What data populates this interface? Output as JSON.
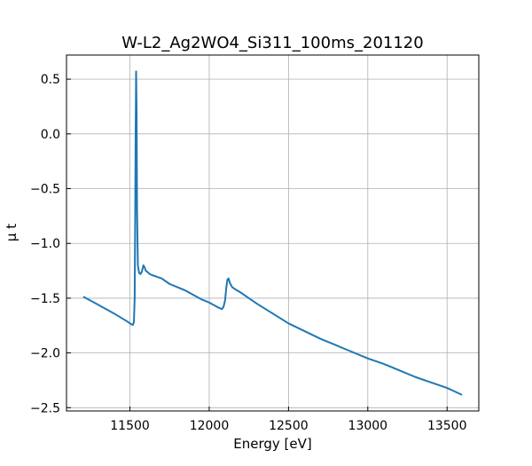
{
  "chart_data": {
    "type": "line",
    "title": "W-L2_Ag2WO4_Si311_100ms_201120",
    "xlabel": "Energy [eV]",
    "ylabel": "μ t",
    "xlim": [
      11100,
      13700
    ],
    "ylim": [
      -2.53,
      0.72
    ],
    "xticks": [
      11500,
      12000,
      12500,
      13000,
      13500
    ],
    "yticks": [
      0.5,
      0.0,
      -0.5,
      -1.0,
      -1.5,
      -2.0,
      -2.5
    ],
    "xtick_labels": [
      "11500",
      "12000",
      "12500",
      "13000",
      "13500"
    ],
    "ytick_labels": [
      "0.5",
      "0.0",
      "−0.5",
      "−1.0",
      "−1.5",
      "−2.0",
      "−2.5"
    ],
    "grid": true,
    "series": [
      {
        "color": "#1f77b4",
        "x": [
          11210,
          11300,
          11400,
          11480,
          11505,
          11518,
          11525,
          11530,
          11533,
          11536,
          11539,
          11542,
          11545,
          11550,
          11558,
          11566,
          11575,
          11585,
          11593,
          11600,
          11610,
          11625,
          11640,
          11660,
          11700,
          11750,
          11800,
          11850,
          11900,
          11950,
          12000,
          12050,
          12080,
          12090,
          12100,
          12108,
          12115,
          12122,
          12130,
          12145,
          12165,
          12200,
          12250,
          12300,
          12400,
          12500,
          12600,
          12700,
          12800,
          12900,
          13000,
          13100,
          13200,
          13300,
          13400,
          13500,
          13590
        ],
        "y": [
          -1.49,
          -1.56,
          -1.64,
          -1.71,
          -1.735,
          -1.745,
          -1.72,
          -1.5,
          -0.8,
          0.0,
          0.57,
          0.2,
          -0.7,
          -1.2,
          -1.27,
          -1.28,
          -1.26,
          -1.2,
          -1.22,
          -1.25,
          -1.26,
          -1.28,
          -1.29,
          -1.3,
          -1.32,
          -1.37,
          -1.4,
          -1.43,
          -1.47,
          -1.51,
          -1.54,
          -1.58,
          -1.6,
          -1.58,
          -1.52,
          -1.4,
          -1.33,
          -1.32,
          -1.36,
          -1.4,
          -1.42,
          -1.45,
          -1.5,
          -1.55,
          -1.64,
          -1.73,
          -1.8,
          -1.87,
          -1.93,
          -1.99,
          -2.05,
          -2.1,
          -2.16,
          -2.22,
          -2.27,
          -2.32,
          -2.38
        ]
      }
    ]
  }
}
